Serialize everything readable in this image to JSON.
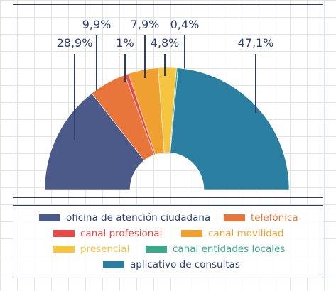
{
  "chart_data": {
    "type": "pie",
    "variant": "half-donut",
    "slices": [
      {
        "name": "oficina de atención ciudadana",
        "value": 28.9,
        "label": "28,9%",
        "color": "#4c5a8a"
      },
      {
        "name": "telefónica",
        "value": 9.9,
        "label": "9,9%",
        "color": "#e8753a"
      },
      {
        "name": "canal profesional",
        "value": 1,
        "label": "1%",
        "color": "#e84a4a"
      },
      {
        "name": "canal movilidad",
        "value": 7.9,
        "label": "7,9%",
        "color": "#f0a030"
      },
      {
        "name": "presencial",
        "value": 4.8,
        "label": "4,8%",
        "color": "#f5c542"
      },
      {
        "name": "canal entidades locales",
        "value": 0.4,
        "label": "0,4%",
        "color": "#3aaa8a"
      },
      {
        "name": "aplicativo de consultas",
        "value": 47.1,
        "label": "47,1%",
        "color": "#2a7fa0"
      }
    ],
    "label_color": "#2c3e6e",
    "legend_position": "bottom",
    "grid": true
  }
}
